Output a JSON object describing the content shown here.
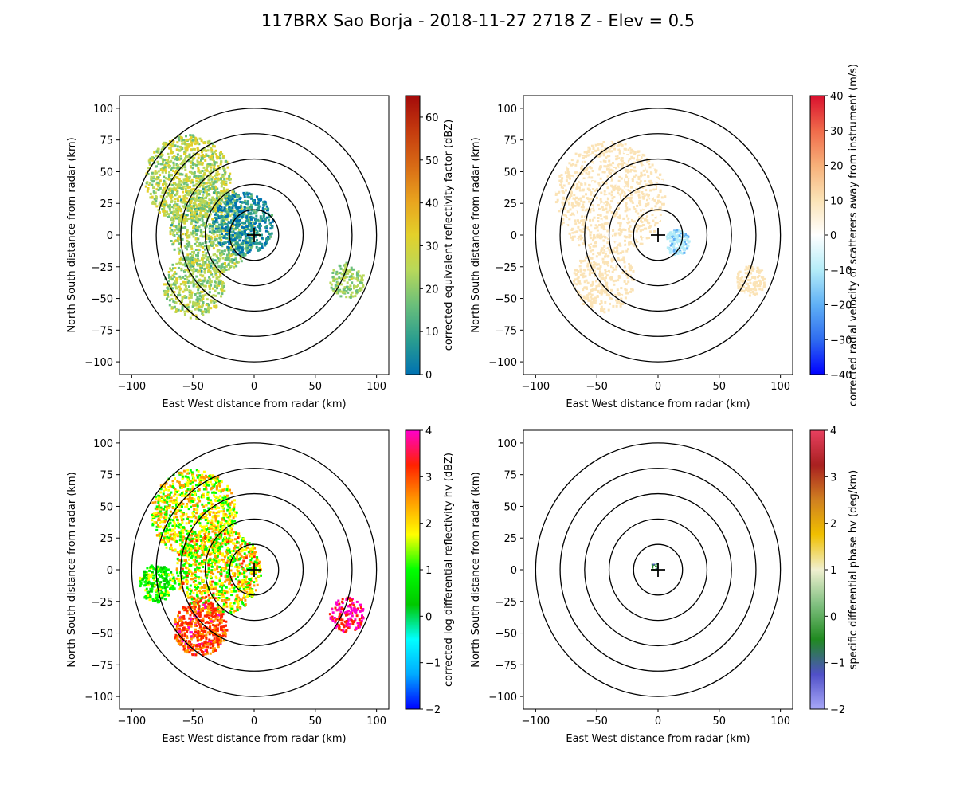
{
  "figure": {
    "suptitle": "117BRX Sao Borja - 2018-11-27 2718 Z -  Elev = 0.5"
  },
  "chart_data": [
    {
      "type": "heatmap",
      "field": "reflectivity",
      "xlabel": "East West distance from radar (km)",
      "ylabel": "North South distance from radar (km)",
      "xlim": [
        -110,
        110
      ],
      "ylim": [
        -110,
        110
      ],
      "xticks": [
        -100,
        -50,
        0,
        50,
        100
      ],
      "yticks": [
        -100,
        -75,
        -50,
        -25,
        0,
        25,
        50,
        75,
        100
      ],
      "range_rings_km": [
        20,
        40,
        60,
        80,
        100
      ],
      "colorbar": {
        "label": "corrected equivalent reflectivity factor (dBZ)",
        "range": [
          0,
          65
        ],
        "ticks": [
          0,
          10,
          20,
          30,
          40,
          50,
          60
        ],
        "colormap": [
          "#0072b2",
          "#2a9d8f",
          "#6bbf7a",
          "#b8d85a",
          "#e3d02a",
          "#e8a21e",
          "#d86a15",
          "#c43a0e",
          "#a30a0a"
        ]
      }
    },
    {
      "type": "heatmap",
      "field": "velocity",
      "xlabel": "East West distance from radar (km)",
      "ylabel": "North South distance from radar (km)",
      "xlim": [
        -110,
        110
      ],
      "ylim": [
        -110,
        110
      ],
      "xticks": [
        -100,
        -50,
        0,
        50,
        100
      ],
      "yticks": [
        -100,
        -75,
        -50,
        -25,
        0,
        25,
        50,
        75,
        100
      ],
      "range_rings_km": [
        20,
        40,
        60,
        80,
        100
      ],
      "colorbar": {
        "label": "corrected radial velocity of scatterers away from instrument (m/s)",
        "range": [
          -40,
          40
        ],
        "ticks": [
          -40,
          -30,
          -20,
          -10,
          0,
          10,
          20,
          30,
          40
        ],
        "colormap": [
          "#0000ff",
          "#2f6cf0",
          "#5fb0f5",
          "#b4ecf8",
          "#ffffff",
          "#fbe3b6",
          "#f7b079",
          "#f06a4a",
          "#d9102e"
        ]
      }
    },
    {
      "type": "heatmap",
      "field": "differential_reflectivity",
      "xlabel": "East West distance from radar (km)",
      "ylabel": "North South distance from radar (km)",
      "xlim": [
        -110,
        110
      ],
      "ylim": [
        -110,
        110
      ],
      "xticks": [
        -100,
        -50,
        0,
        50,
        100
      ],
      "yticks": [
        -100,
        -75,
        -50,
        -25,
        0,
        25,
        50,
        75,
        100
      ],
      "range_rings_km": [
        20,
        40,
        60,
        80,
        100
      ],
      "colorbar": {
        "label": "corrected log differential reflectivity hv (dBZ)",
        "range": [
          -2,
          4
        ],
        "ticks": [
          -2,
          -1,
          0,
          1,
          2,
          3,
          4
        ],
        "colormap": [
          "#0000ff",
          "#00aaff",
          "#00ffff",
          "#00c800",
          "#00ff00",
          "#ffff00",
          "#ff9900",
          "#ff2200",
          "#ff00cc"
        ]
      }
    },
    {
      "type": "heatmap",
      "field": "specific_differential_phase",
      "xlabel": "East West distance from radar (km)",
      "ylabel": "North South distance from radar (km)",
      "xlim": [
        -110,
        110
      ],
      "ylim": [
        -110,
        110
      ],
      "xticks": [
        -100,
        -50,
        0,
        50,
        100
      ],
      "yticks": [
        -100,
        -75,
        -50,
        -25,
        0,
        25,
        50,
        75,
        100
      ],
      "range_rings_km": [
        20,
        40,
        60,
        80,
        100
      ],
      "colorbar": {
        "label": "specific differential phase hv (deg/km)",
        "range": [
          -2,
          4
        ],
        "ticks": [
          -2,
          -1,
          0,
          1,
          2,
          3,
          4
        ],
        "colormap": [
          "#a8a8f8",
          "#5050c8",
          "#208a20",
          "#80c080",
          "#f0f0d0",
          "#f0c000",
          "#d08020",
          "#a82020",
          "#e84060"
        ]
      }
    }
  ]
}
